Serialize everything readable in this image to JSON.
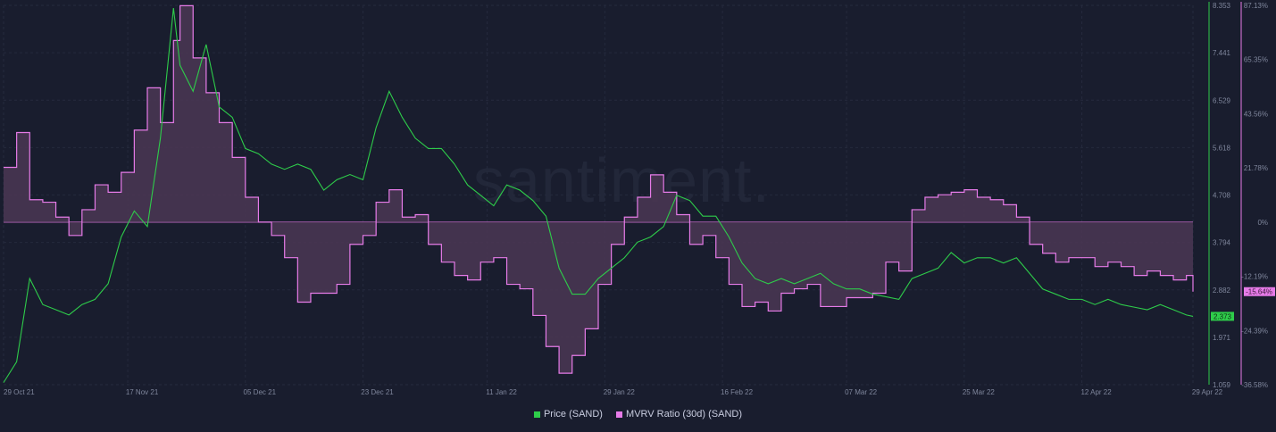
{
  "watermark": "santiment.",
  "colors": {
    "price": "#2ecc4a",
    "mvrv": "#e67be8",
    "mvrv_fill": "#4b3753",
    "background": "#191d2e",
    "grid": "#252a3d"
  },
  "legend": [
    {
      "label": "Price (SAND)",
      "color": "#2ecc4a"
    },
    {
      "label": "MVRV Ratio (30d) (SAND)",
      "color": "#e67be8"
    }
  ],
  "chart_data": {
    "type": "line",
    "x_ticks": [
      "29 Oct 21",
      "17 Nov 21",
      "05 Dec 21",
      "23 Dec 21",
      "11 Jan 22",
      "29 Jan 22",
      "16 Feb 22",
      "07 Mar 22",
      "25 Mar 22",
      "12 Apr 22",
      "29 Apr 22"
    ],
    "price_axis": {
      "ticks": [
        "8.353",
        "7.441",
        "6.529",
        "5.618",
        "4.708",
        "3.794",
        "2.882",
        "1.971",
        "1.059"
      ],
      "range": [
        1.059,
        8.353
      ],
      "current": "2.373"
    },
    "mvrv_axis": {
      "ticks": [
        "87.13%",
        "65.35%",
        "43.56%",
        "21.78%",
        "0%",
        "-12.19%",
        "-24.39%",
        "-36.58%"
      ],
      "current": "-15.64%"
    },
    "series": [
      {
        "name": "Price (SAND)",
        "axis": "price",
        "x": [
          "29 Oct 21",
          "31 Oct 21",
          "02 Nov 21",
          "04 Nov 21",
          "06 Nov 21",
          "08 Nov 21",
          "10 Nov 21",
          "12 Nov 21",
          "14 Nov 21",
          "16 Nov 21",
          "18 Nov 21",
          "20 Nov 21",
          "22 Nov 21",
          "24 Nov 21",
          "25 Nov 21",
          "27 Nov 21",
          "29 Nov 21",
          "01 Dec 21",
          "03 Dec 21",
          "05 Dec 21",
          "07 Dec 21",
          "09 Dec 21",
          "11 Dec 21",
          "13 Dec 21",
          "15 Dec 21",
          "17 Dec 21",
          "19 Dec 21",
          "21 Dec 21",
          "23 Dec 21",
          "25 Dec 21",
          "27 Dec 21",
          "29 Dec 21",
          "31 Dec 21",
          "02 Jan 22",
          "04 Jan 22",
          "06 Jan 22",
          "08 Jan 22",
          "10 Jan 22",
          "12 Jan 22",
          "14 Jan 22",
          "16 Jan 22",
          "18 Jan 22",
          "20 Jan 22",
          "22 Jan 22",
          "24 Jan 22",
          "26 Jan 22",
          "28 Jan 22",
          "30 Jan 22",
          "01 Feb 22",
          "03 Feb 22",
          "05 Feb 22",
          "07 Feb 22",
          "09 Feb 22",
          "11 Feb 22",
          "13 Feb 22",
          "15 Feb 22",
          "17 Feb 22",
          "19 Feb 22",
          "21 Feb 22",
          "23 Feb 22",
          "25 Feb 22",
          "27 Feb 22",
          "01 Mar 22",
          "03 Mar 22",
          "05 Mar 22",
          "07 Mar 22",
          "09 Mar 22",
          "11 Mar 22",
          "13 Mar 22",
          "15 Mar 22",
          "17 Mar 22",
          "19 Mar 22",
          "21 Mar 22",
          "23 Mar 22",
          "25 Mar 22",
          "27 Mar 22",
          "29 Mar 22",
          "31 Mar 22",
          "02 Apr 22",
          "04 Apr 22",
          "06 Apr 22",
          "08 Apr 22",
          "10 Apr 22",
          "12 Apr 22",
          "14 Apr 22",
          "16 Apr 22",
          "18 Apr 22",
          "20 Apr 22",
          "22 Apr 22",
          "24 Apr 22",
          "26 Apr 22",
          "28 Apr 22",
          "29 Apr 22"
        ],
        "y": [
          1.1,
          1.5,
          3.1,
          2.6,
          2.5,
          2.4,
          2.6,
          2.7,
          3.0,
          3.9,
          4.4,
          4.1,
          5.8,
          8.3,
          7.2,
          6.7,
          7.6,
          6.4,
          6.2,
          5.6,
          5.5,
          5.3,
          5.2,
          5.3,
          5.2,
          4.8,
          5.0,
          5.1,
          5.0,
          6.0,
          6.7,
          6.2,
          5.8,
          5.6,
          5.6,
          5.3,
          4.9,
          4.7,
          4.5,
          4.9,
          4.8,
          4.6,
          4.3,
          3.3,
          2.8,
          2.8,
          3.1,
          3.3,
          3.5,
          3.8,
          3.9,
          4.1,
          4.7,
          4.6,
          4.3,
          4.3,
          3.9,
          3.4,
          3.1,
          3.0,
          3.1,
          3.0,
          3.1,
          3.2,
          3.0,
          2.9,
          2.9,
          2.8,
          2.75,
          2.7,
          3.1,
          3.2,
          3.3,
          3.6,
          3.4,
          3.5,
          3.5,
          3.4,
          3.5,
          3.2,
          2.9,
          2.8,
          2.7,
          2.7,
          2.6,
          2.7,
          2.6,
          2.55,
          2.5,
          2.6,
          2.5,
          2.4,
          2.373
        ]
      },
      {
        "name": "MVRV Ratio (30d) (SAND)",
        "axis": "mvrv",
        "x": [
          "29 Oct 21",
          "31 Oct 21",
          "02 Nov 21",
          "04 Nov 21",
          "06 Nov 21",
          "08 Nov 21",
          "10 Nov 21",
          "12 Nov 21",
          "14 Nov 21",
          "16 Nov 21",
          "18 Nov 21",
          "20 Nov 21",
          "22 Nov 21",
          "24 Nov 21",
          "25 Nov 21",
          "27 Nov 21",
          "29 Nov 21",
          "01 Dec 21",
          "03 Dec 21",
          "05 Dec 21",
          "07 Dec 21",
          "09 Dec 21",
          "11 Dec 21",
          "13 Dec 21",
          "15 Dec 21",
          "17 Dec 21",
          "19 Dec 21",
          "21 Dec 21",
          "23 Dec 21",
          "25 Dec 21",
          "27 Dec 21",
          "29 Dec 21",
          "31 Dec 21",
          "02 Jan 22",
          "04 Jan 22",
          "06 Jan 22",
          "08 Jan 22",
          "10 Jan 22",
          "12 Jan 22",
          "14 Jan 22",
          "16 Jan 22",
          "18 Jan 22",
          "20 Jan 22",
          "22 Jan 22",
          "24 Jan 22",
          "26 Jan 22",
          "28 Jan 22",
          "30 Jan 22",
          "01 Feb 22",
          "03 Feb 22",
          "05 Feb 22",
          "07 Feb 22",
          "09 Feb 22",
          "11 Feb 22",
          "13 Feb 22",
          "15 Feb 22",
          "17 Feb 22",
          "19 Feb 22",
          "21 Feb 22",
          "23 Feb 22",
          "25 Feb 22",
          "27 Feb 22",
          "01 Mar 22",
          "03 Mar 22",
          "05 Mar 22",
          "07 Mar 22",
          "09 Mar 22",
          "11 Mar 22",
          "13 Mar 22",
          "15 Mar 22",
          "17 Mar 22",
          "19 Mar 22",
          "21 Mar 22",
          "23 Mar 22",
          "25 Mar 22",
          "27 Mar 22",
          "29 Mar 22",
          "31 Mar 22",
          "02 Apr 22",
          "04 Apr 22",
          "06 Apr 22",
          "08 Apr 22",
          "10 Apr 22",
          "12 Apr 22",
          "14 Apr 22",
          "16 Apr 22",
          "18 Apr 22",
          "20 Apr 22",
          "22 Apr 22",
          "24 Apr 22",
          "26 Apr 22",
          "28 Apr 22",
          "29 Apr 22"
        ],
        "y": [
          22,
          36,
          9,
          8,
          2,
          -3,
          5,
          15,
          12,
          20,
          37,
          54,
          40,
          73,
          87,
          66,
          52,
          40,
          26,
          10,
          0,
          -3,
          -8,
          -18,
          -16,
          -16,
          -14,
          -5,
          -3,
          8,
          13,
          2,
          3,
          -5,
          -9,
          -12,
          -13,
          -9,
          -8,
          -14,
          -15,
          -21,
          -28,
          -34,
          -30,
          -24,
          -14,
          -5,
          2,
          10,
          19,
          12,
          3,
          -5,
          -3,
          -8,
          -14,
          -19,
          -18,
          -20,
          -16,
          -15,
          -14,
          -19,
          -19,
          -17,
          -17,
          -16,
          -9,
          -11,
          5,
          10,
          11,
          12,
          13,
          10,
          9,
          7,
          2,
          -5,
          -7,
          -9,
          -8,
          -8,
          -10,
          -9,
          -10,
          -12,
          -11,
          -12,
          -13,
          -12,
          -15.64
        ]
      }
    ]
  }
}
